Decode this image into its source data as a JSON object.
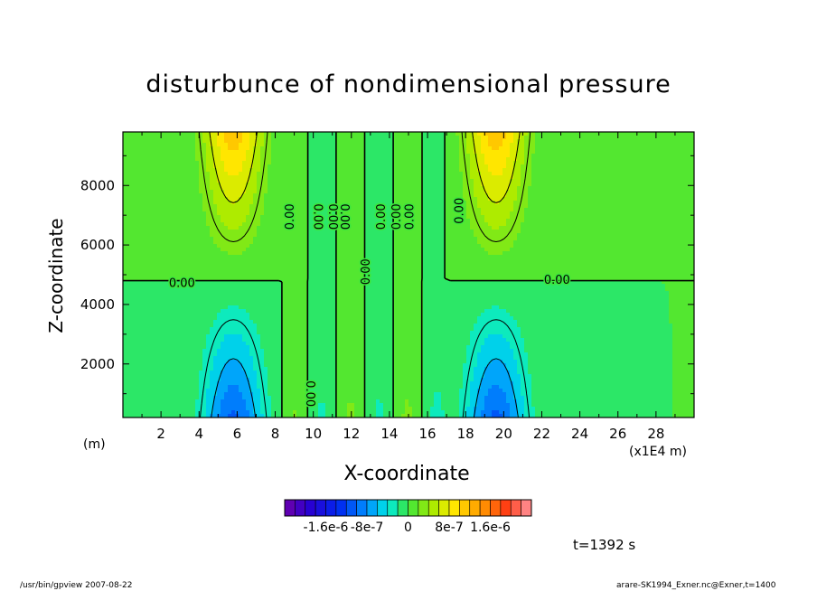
{
  "chart_data": {
    "type": "heatmap",
    "title": "disturbunce of nondimensional pressure",
    "xlabel": "X-coordinate",
    "ylabel": "Z-coordinate",
    "x_unit_left": "(m)",
    "x_unit_right": "(x1E4 m)",
    "xlim": [
      0,
      30
    ],
    "ylim": [
      200,
      9800
    ],
    "x_ticks": [
      2,
      4,
      6,
      8,
      10,
      12,
      14,
      16,
      18,
      20,
      22,
      24,
      26,
      28
    ],
    "y_ticks": [
      2000,
      4000,
      6000,
      8000
    ],
    "colorbar": {
      "min": -2.4e-06,
      "max": 2.4e-06,
      "levels": 24,
      "tick_labels": [
        "-1.6e-6",
        "-8e-7",
        "0",
        "8e-7",
        "1.6e-6"
      ],
      "tick_values": [
        -1.6e-06,
        -8e-07,
        0,
        8e-07,
        1.6e-06
      ]
    },
    "contour_labels": [
      {
        "text": "0.00",
        "x": 3.1,
        "z": 4700,
        "rotate": 0
      },
      {
        "text": "0.00",
        "x": 22.8,
        "z": 4800,
        "rotate": 0
      },
      {
        "text": "0.00",
        "x": 8.8,
        "z": 6950,
        "rotate": -90
      },
      {
        "text": "0.00",
        "x": 10.2,
        "z": 6950,
        "rotate": 90
      },
      {
        "text": "0.00",
        "x": 11.0,
        "z": 6950,
        "rotate": 90
      },
      {
        "text": "0.00",
        "x": 11.6,
        "z": 6950,
        "rotate": 90
      },
      {
        "text": "0.00",
        "x": 12.8,
        "z": 5100,
        "rotate": -90
      },
      {
        "text": "0.00",
        "x": 13.6,
        "z": 6950,
        "rotate": -90
      },
      {
        "text": "0.00",
        "x": 14.4,
        "z": 6950,
        "rotate": -90
      },
      {
        "text": "0.00",
        "x": 15.1,
        "z": 6950,
        "rotate": -90
      },
      {
        "text": "0.00",
        "x": 17.7,
        "z": 7150,
        "rotate": -90
      },
      {
        "text": "0.00",
        "x": 9.8,
        "z": 1000,
        "rotate": 90
      }
    ]
  },
  "time_label": "t=1392 s",
  "footer": {
    "left": "/usr/bin/gpview   2007-08-22",
    "right": "arare-SK1994_Exner.nc@Exner,t=1400"
  }
}
